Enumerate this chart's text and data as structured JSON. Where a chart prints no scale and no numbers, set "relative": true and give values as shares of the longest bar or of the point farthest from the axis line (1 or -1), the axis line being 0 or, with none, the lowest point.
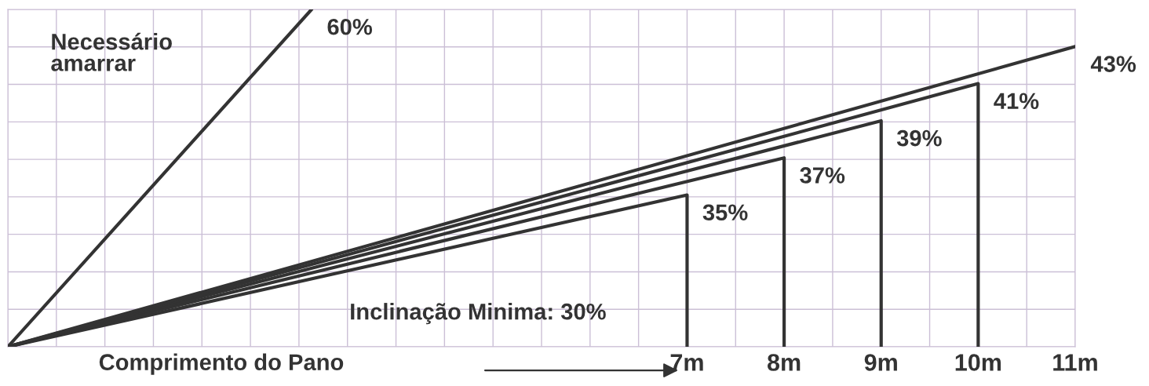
{
  "chart_data": {
    "type": "line",
    "relative": true,
    "grid": true,
    "marker": "none",
    "line_style": "solid",
    "xlabel": "Comprimento do Pano",
    "xlim": [
      0,
      11
    ],
    "xticks": [
      {
        "value": 7,
        "label": "7m"
      },
      {
        "value": 8,
        "label": "8m"
      },
      {
        "value": 9,
        "label": "9m"
      },
      {
        "value": 10,
        "label": "10m"
      },
      {
        "value": 11,
        "label": "11m"
      }
    ],
    "tick_labels": "x",
    "series": [
      {
        "color": "#333333",
        "x": [
          0,
          3.13
        ],
        "values": [
          0,
          1
        ]
      },
      {
        "color": "#333333",
        "x": [
          0,
          7,
          7
        ],
        "values": [
          0,
          0.45,
          0
        ]
      },
      {
        "color": "#333333",
        "x": [
          0,
          8,
          8
        ],
        "values": [
          0,
          0.56,
          0
        ]
      },
      {
        "color": "#333333",
        "x": [
          0,
          9,
          9
        ],
        "values": [
          0,
          0.67,
          0
        ]
      },
      {
        "color": "#333333",
        "x": [
          0,
          10,
          10
        ],
        "values": [
          0,
          0.78,
          0
        ]
      },
      {
        "color": "#333333",
        "x": [
          0,
          11
        ],
        "values": [
          0,
          0.89
        ]
      }
    ],
    "annotations": [
      {
        "text": "60%",
        "x": 3.13,
        "y": 1
      },
      {
        "text": "35%",
        "x": 7,
        "y": 0.45
      },
      {
        "text": "37%",
        "x": 8,
        "y": 0.56
      },
      {
        "text": "39%",
        "x": 9,
        "y": 0.67
      },
      {
        "text": "41%",
        "x": 10,
        "y": 0.78
      },
      {
        "text": "43%",
        "x": 11,
        "y": 0.89
      },
      "Necessário\namarrar",
      "Inclinação Minima: 30%"
    ]
  }
}
